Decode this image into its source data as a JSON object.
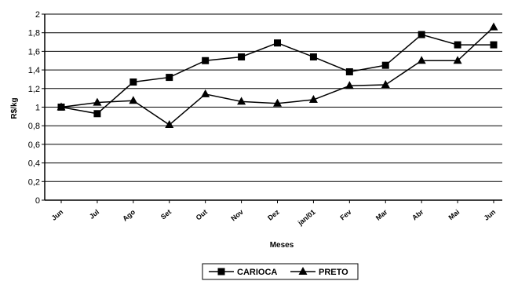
{
  "chart_data": {
    "type": "line",
    "xlabel": "Meses",
    "ylabel": "R$/kg",
    "ylim": [
      0,
      2
    ],
    "yticks": [
      "0",
      "0,2",
      "0,4",
      "0,6",
      "0,8",
      "1",
      "1,2",
      "1,4",
      "1,6",
      "1,8",
      "2"
    ],
    "categories": [
      "Jun",
      "Jul",
      "Ago",
      "Set",
      "Out",
      "Nov",
      "Dez",
      "jan/01",
      "Fev",
      "Mar",
      "Abr",
      "Mai",
      "Jun"
    ],
    "grid": "horizontal",
    "legend_position": "bottom",
    "series": [
      {
        "name": "CARIOCA",
        "marker": "square",
        "color": "#000000",
        "values": [
          1.0,
          0.93,
          1.27,
          1.32,
          1.5,
          1.54,
          1.69,
          1.54,
          1.38,
          1.45,
          1.78,
          1.67,
          1.67
        ]
      },
      {
        "name": "PRETO",
        "marker": "triangle",
        "color": "#000000",
        "values": [
          1.0,
          1.05,
          1.07,
          0.81,
          1.14,
          1.06,
          1.04,
          1.08,
          1.23,
          1.24,
          1.5,
          1.5,
          1.86
        ]
      }
    ]
  }
}
